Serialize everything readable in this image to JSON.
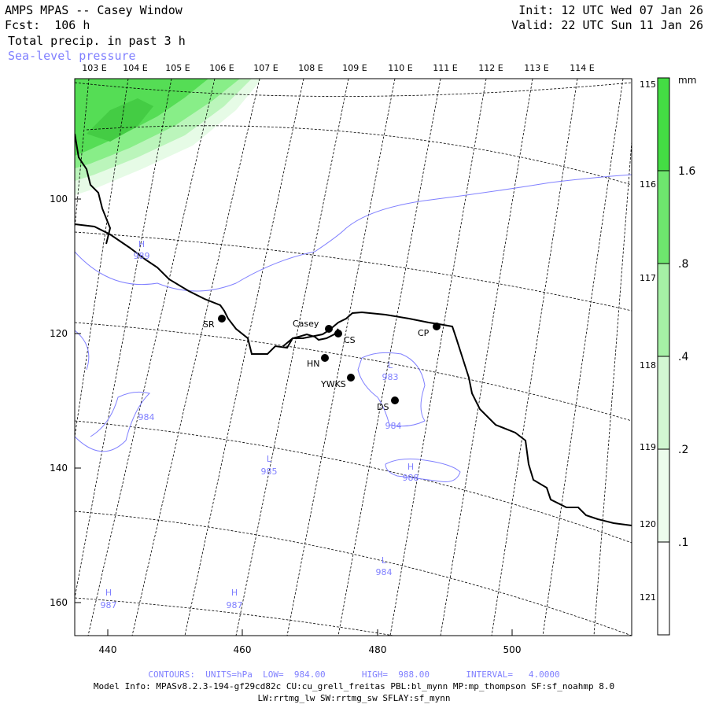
{
  "header": {
    "title": "AMPS MPAS -- Casey Window",
    "forecast": "Fcst:  106 h",
    "field": "Total precip. in past 3 h",
    "overlay": "Sea-level pressure",
    "init": "Init: 12 UTC Wed 07 Jan 26",
    "valid": "Valid: 22 UTC Sun 11 Jan 26"
  },
  "map": {
    "top_lon_labels": [
      "103 E",
      "104 E",
      "105 E",
      "106 E",
      "107 E",
      "108 E",
      "109 E",
      "110 E",
      "111 E",
      "112 E",
      "113 E",
      "114 E"
    ],
    "right_lon_labels": [
      "115 E",
      "116 E",
      "117 E",
      "118 E",
      "119 E",
      "120 E",
      "121 E"
    ],
    "x_ticks": [
      440,
      460,
      480,
      500
    ],
    "y_ticks": [
      100,
      120,
      140,
      160
    ],
    "stations": [
      {
        "name": "SR"
      },
      {
        "name": "Casey"
      },
      {
        "name": "CS"
      },
      {
        "name": "HN"
      },
      {
        "name": "YWKS"
      },
      {
        "name": "CP"
      },
      {
        "name": "DS"
      }
    ],
    "pressure_labels": [
      {
        "type": "H",
        "value": "989"
      },
      {
        "type": "",
        "value": "984"
      },
      {
        "type": "L",
        "value": "983"
      },
      {
        "type": "",
        "value": "984"
      },
      {
        "type": "L",
        "value": "985"
      },
      {
        "type": "H",
        "value": "988"
      },
      {
        "type": "L",
        "value": "984"
      },
      {
        "type": "H",
        "value": "987"
      },
      {
        "type": "H",
        "value": "987"
      }
    ],
    "colors": {
      "precip_dark": "#55dd55",
      "precip_mid": "#88ee88",
      "precip_light": "#bbf5bb",
      "precip_lightest": "#e6fbe6",
      "slp_contour": "#8080ff",
      "coastline": "#000000"
    }
  },
  "colorbar": {
    "unit": "mm",
    "labels": [
      "1.6",
      ".8",
      ".4",
      ".2",
      ".1"
    ],
    "colors": [
      "#44dd44",
      "#6ee66e",
      "#a6f0a6",
      "#d2f7d2",
      "#ecfcec",
      "#ffffff"
    ]
  },
  "footer": {
    "contours": "CONTOURS:  UNITS=hPa  LOW=  984.00       HIGH=  988.00       INTERVAL=   4.0000",
    "model_info": "Model Info: MPASv8.2.3-194-gf29cd82c CU:cu_grell_freitas PBL:bl_mynn MP:mp_thompson SF:sf_noahmp 8.0",
    "model_info2": "LW:rrtmg_lw SW:rrtmg_sw SFLAY:sf_mynn"
  }
}
